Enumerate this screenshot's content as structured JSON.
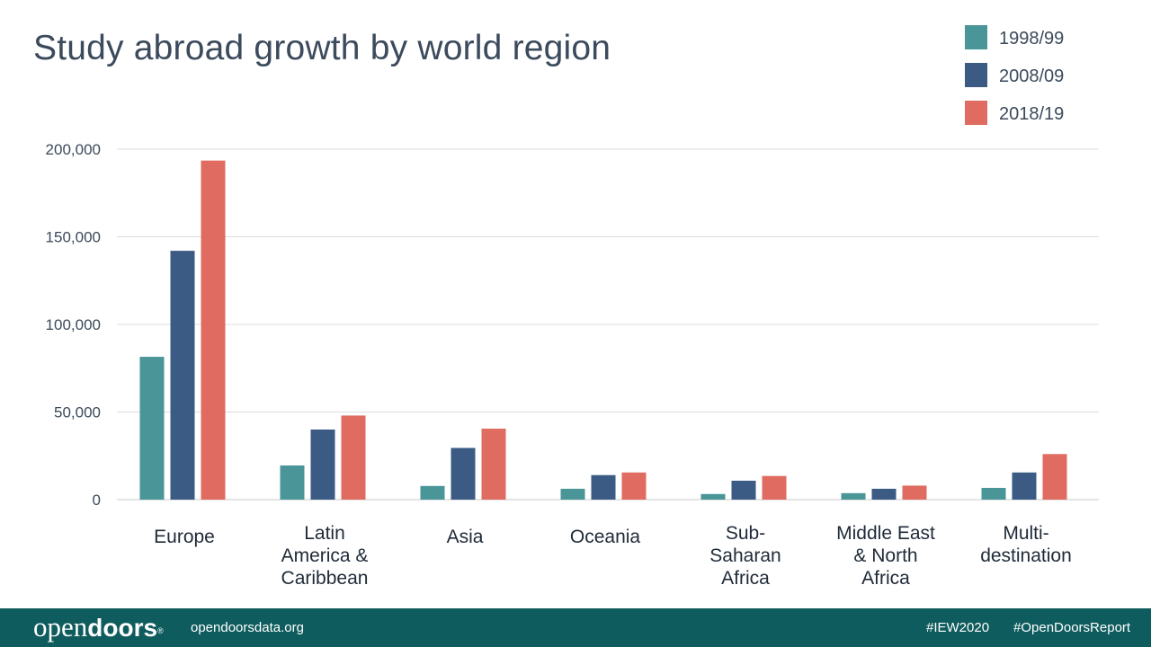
{
  "chart_data": {
    "type": "bar",
    "title": "Study abroad growth by world region",
    "xlabel": "",
    "ylabel": "",
    "ylim": [
      0,
      200000
    ],
    "yticks": [
      0,
      50000,
      100000,
      150000,
      200000
    ],
    "ytick_labels": [
      "0",
      "50,000",
      "100,000",
      "150,000",
      "200,000"
    ],
    "grid": true,
    "legend_position": "top-right",
    "categories": [
      [
        "Europe"
      ],
      [
        "Latin",
        "America &",
        "Caribbean"
      ],
      [
        "Asia"
      ],
      [
        "Oceania"
      ],
      [
        "Sub-",
        "Saharan",
        "Africa"
      ],
      [
        "Middle East",
        "& North",
        "Africa"
      ],
      [
        "Multi-",
        "destination"
      ]
    ],
    "series": [
      {
        "name": "1998/99",
        "color": "#4a9598",
        "values": [
          81500,
          19500,
          7800,
          6200,
          3200,
          3700,
          6700
        ]
      },
      {
        "name": "2008/09",
        "color": "#3b5b84",
        "values": [
          142000,
          40000,
          29500,
          14000,
          10800,
          6200,
          15500
        ]
      },
      {
        "name": "2018/19",
        "color": "#e06b60",
        "values": [
          193500,
          48000,
          40500,
          15500,
          13500,
          8000,
          26000
        ]
      }
    ]
  },
  "footer": {
    "logo_light": "open",
    "logo_bold": "doors",
    "logo_mark": "®",
    "website": "opendoorsdata.org",
    "hashtag_1": "#IEW2020",
    "hashtag_2": "#OpenDoorsReport"
  }
}
